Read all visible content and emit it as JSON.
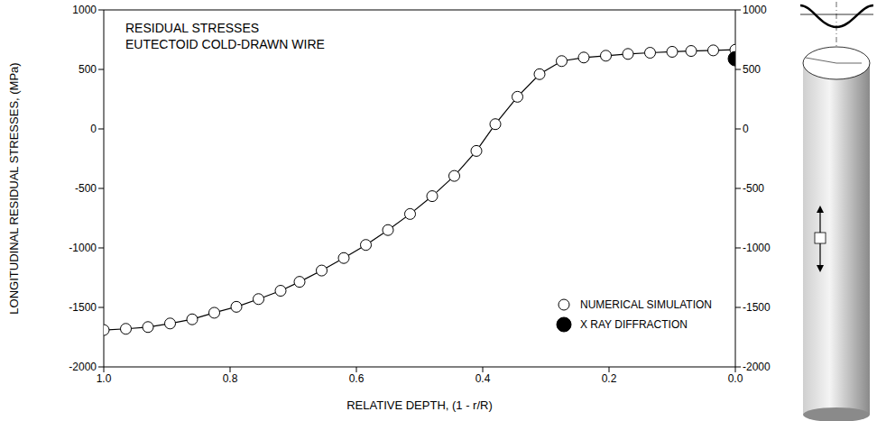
{
  "chart_data": {
    "type": "scatter",
    "title": "RESIDUAL STRESSES",
    "subtitle": "EUTECTOID COLD-DRAWN WIRE",
    "x_label": "RELATIVE DEPTH, (1 - r/R)",
    "y_label": "LONGITUDINAL RESIDUAL STRESSES, (MPa)",
    "xlim": [
      1.0,
      0.0
    ],
    "xticks": [
      {
        "value": 1.0,
        "label": "1.0"
      },
      {
        "value": 0.8,
        "label": "0.8"
      },
      {
        "value": 0.6,
        "label": "0.6"
      },
      {
        "value": 0.4,
        "label": "0.4"
      },
      {
        "value": 0.2,
        "label": "0.2"
      },
      {
        "value": 0.0,
        "label": "0.0"
      }
    ],
    "ylim": [
      -2000,
      1000
    ],
    "yticks": [
      -2000,
      -1500,
      -1000,
      -500,
      0,
      500,
      1000
    ],
    "y2lim": [
      -2000,
      1000
    ],
    "y2ticks": [
      -2000,
      -1500,
      -1000,
      -500,
      0,
      500,
      1000
    ],
    "grid": false,
    "legend": "lower right",
    "series": [
      {
        "name": "NUMERICAL SIMULATION",
        "color": "#000000",
        "marker": "open circle",
        "line_style": "solid",
        "x": [
          1.0,
          0.965,
          0.93,
          0.895,
          0.86,
          0.825,
          0.79,
          0.755,
          0.72,
          0.69,
          0.655,
          0.62,
          0.585,
          0.55,
          0.515,
          0.48,
          0.445,
          0.41,
          0.38,
          0.345,
          0.31,
          0.275,
          0.24,
          0.205,
          0.17,
          0.135,
          0.1,
          0.07,
          0.035,
          0.0
        ],
        "values": [
          -1690,
          -1680,
          -1665,
          -1635,
          -1600,
          -1545,
          -1495,
          -1430,
          -1360,
          -1285,
          -1190,
          -1085,
          -975,
          -850,
          -715,
          -565,
          -395,
          -185,
          40,
          270,
          460,
          570,
          600,
          615,
          630,
          640,
          648,
          655,
          660,
          665
        ]
      },
      {
        "name": "X RAY DIFFRACTION",
        "color": "#000000",
        "marker": "filled circle",
        "line_style": "none",
        "x": [
          0.0
        ],
        "values": [
          590
        ]
      }
    ]
  }
}
